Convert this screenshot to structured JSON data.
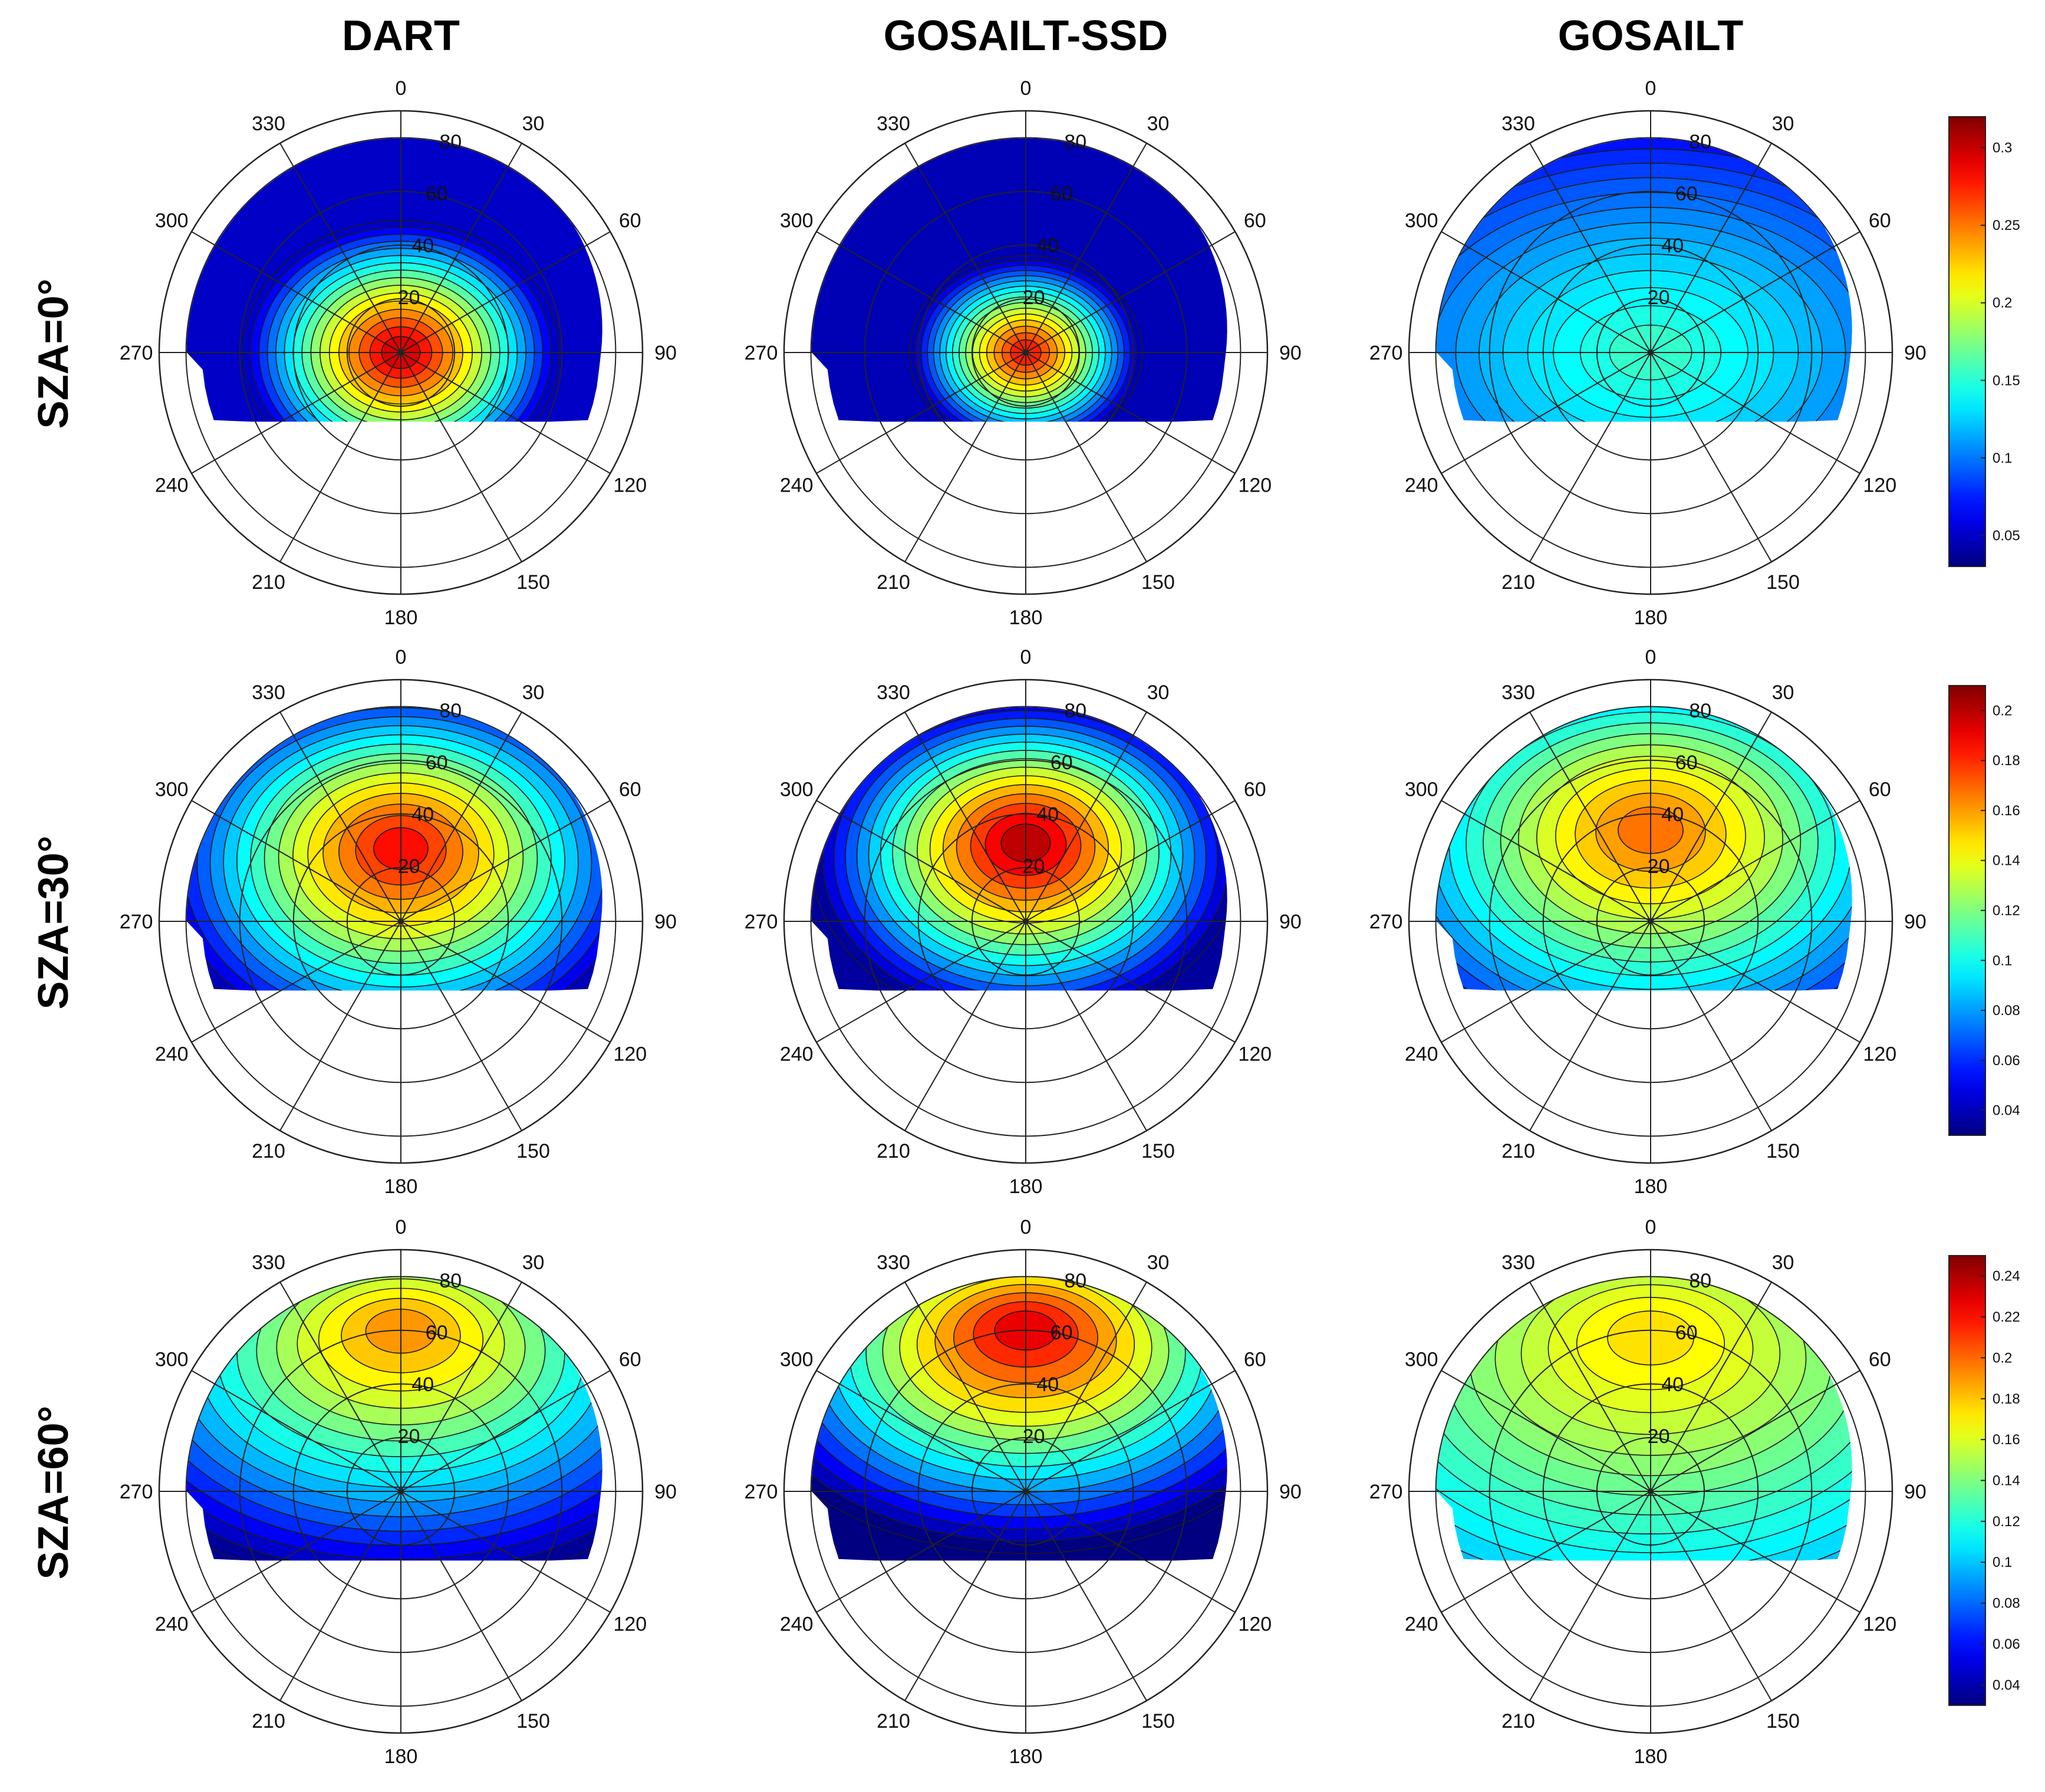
{
  "chart_data": {
    "type": "polar-contour-grid",
    "columns": [
      "DART",
      "GOSAILT-SSD",
      "GOSAILT"
    ],
    "rows": [
      "SZA=0°",
      "SZA=30°",
      "SZA=60°"
    ],
    "azimuth_ticks": [
      "0",
      "30",
      "60",
      "90",
      "120",
      "150",
      "180",
      "210",
      "240",
      "270",
      "300",
      "330"
    ],
    "zenith_ticks": [
      "20",
      "40",
      "60",
      "80"
    ],
    "zenith_max": 90,
    "data_coverage": "upper hemisphere up to about 80° zenith plus lower sector to about 25° zenith",
    "colorbars": [
      {
        "row": "SZA=0°",
        "min": 0.03,
        "max": 0.32,
        "ticks": [
          "0.05",
          "0.1",
          "0.15",
          "0.2",
          "0.25",
          "0.3"
        ]
      },
      {
        "row": "SZA=30°",
        "min": 0.03,
        "max": 0.21,
        "ticks": [
          "0.04",
          "0.06",
          "0.08",
          "0.1",
          "0.12",
          "0.14",
          "0.16",
          "0.18",
          "0.2"
        ]
      },
      {
        "row": "SZA=60°",
        "min": 0.03,
        "max": 0.25,
        "ticks": [
          "0.04",
          "0.06",
          "0.08",
          "0.1",
          "0.12",
          "0.14",
          "0.16",
          "0.18",
          "0.2",
          "0.22",
          "0.24"
        ]
      }
    ],
    "panels": [
      {
        "row": 0,
        "col": 0,
        "model": "DART",
        "sza": 0,
        "peak": 0.31,
        "hotspot_azimuth": 0,
        "hotspot_zenith": 0,
        "edge_value": 0.05,
        "spread": 22,
        "aspect": 1.2,
        "forward_boost": 0.0
      },
      {
        "row": 0,
        "col": 1,
        "model": "GOSAILT-SSD",
        "sza": 0,
        "peak": 0.29,
        "hotspot_azimuth": 0,
        "hotspot_zenith": 0,
        "edge_value": 0.045,
        "spread": 16,
        "aspect": 1.2,
        "forward_boost": 0.0
      },
      {
        "row": 0,
        "col": 2,
        "model": "GOSAILT",
        "sza": 0,
        "peak": 0.16,
        "hotspot_azimuth": 0,
        "hotspot_zenith": 0,
        "edge_value": 0.05,
        "spread": 55,
        "aspect": 1.5,
        "forward_boost": 0.0
      },
      {
        "row": 1,
        "col": 0,
        "model": "DART",
        "sza": 30,
        "peak": 0.195,
        "hotspot_azimuth": 0,
        "hotspot_zenith": 28,
        "edge_value": 0.04,
        "spread": 34,
        "aspect": 1.3,
        "forward_boost": 0.0
      },
      {
        "row": 1,
        "col": 1,
        "model": "GOSAILT-SSD",
        "sza": 30,
        "peak": 0.21,
        "hotspot_azimuth": 0,
        "hotspot_zenith": 30,
        "edge_value": 0.035,
        "spread": 30,
        "aspect": 1.3,
        "forward_boost": 0.0
      },
      {
        "row": 1,
        "col": 2,
        "model": "GOSAILT",
        "sza": 30,
        "peak": 0.175,
        "hotspot_azimuth": 0,
        "hotspot_zenith": 35,
        "edge_value": 0.05,
        "spread": 42,
        "aspect": 1.4,
        "forward_boost": 0.0
      },
      {
        "row": 2,
        "col": 0,
        "model": "DART",
        "sza": 60,
        "peak": 0.2,
        "hotspot_azimuth": 0,
        "hotspot_zenith": 62,
        "edge_value": 0.035,
        "spread": 46,
        "aspect": 1.6,
        "forward_boost": 0.0
      },
      {
        "row": 2,
        "col": 1,
        "model": "GOSAILT-SSD",
        "sza": 60,
        "peak": 0.24,
        "hotspot_azimuth": 0,
        "hotspot_zenith": 62,
        "edge_value": 0.03,
        "spread": 40,
        "aspect": 1.6,
        "forward_boost": 0.0
      },
      {
        "row": 2,
        "col": 2,
        "model": "GOSAILT",
        "sza": 60,
        "peak": 0.18,
        "hotspot_azimuth": 0,
        "hotspot_zenith": 60,
        "edge_value": 0.08,
        "spread": 58,
        "aspect": 1.6,
        "forward_boost": 0.0
      }
    ]
  }
}
